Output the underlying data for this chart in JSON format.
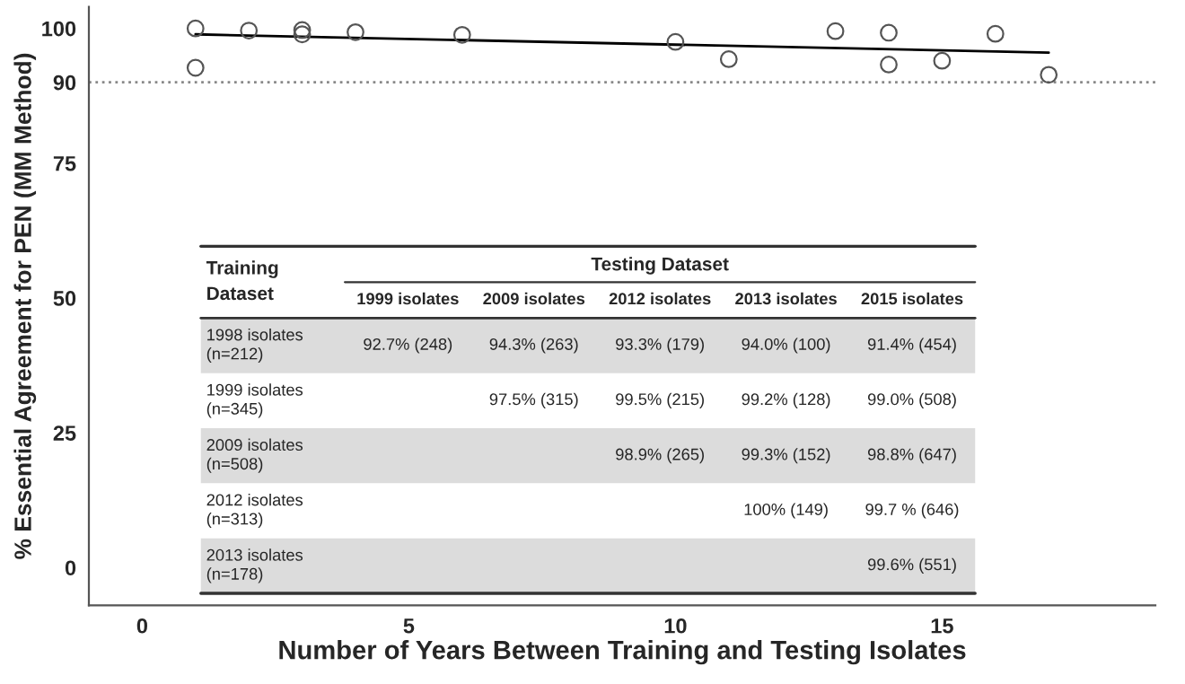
{
  "chart_data": {
    "type": "scatter",
    "xlabel": "Number of Years Between Training and Testing Isolates",
    "ylabel": "% Essential Agreement for PEN (MM Method)",
    "xlim": [
      -1,
      19
    ],
    "xticks": [
      0,
      5,
      10,
      15
    ],
    "ylim": [
      -7,
      104
    ],
    "yticks": [
      0,
      25,
      50,
      75,
      90,
      100
    ],
    "grid": false,
    "legend": false,
    "series": [
      {
        "marker": "circle",
        "color": "#555555",
        "x": [
          1,
          11,
          14,
          15,
          17,
          10,
          13,
          14,
          16,
          3,
          4,
          6,
          1,
          3,
          2
        ],
        "values": [
          92.7,
          94.3,
          93.3,
          94.0,
          91.4,
          97.5,
          99.5,
          99.2,
          99.0,
          98.9,
          99.3,
          98.8,
          100,
          99.7,
          99.6
        ]
      },
      {
        "type": "line",
        "color": "#000000",
        "x": [
          1,
          17
        ],
        "values": [
          98.9,
          95.5
        ]
      }
    ],
    "ref_lines": [
      {
        "axis": "y",
        "value": 90,
        "color": "#888888",
        "line_style": "dotted"
      }
    ],
    "annotations": [
      "Training\nDataset",
      "Testing Dataset",
      "1999 isolates",
      "2009 isolates",
      "2012 isolates",
      "2013 isolates",
      "2015 isolates",
      "1998 isolates\n(n=212)",
      "92.7% (248)",
      "94.3% (263)",
      "93.3% (179)",
      "94.0% (100)",
      "91.4% (454)",
      "1999 isolates\n(n=345)",
      "97.5% (315)",
      "99.5% (215)",
      "99.2% (128)",
      "99.0% (508)",
      "2009 isolates\n(n=508)",
      "98.9% (265)",
      "99.3% (152)",
      "98.8% (647)",
      "2012 isolates\n(n=313)",
      "100% (149)",
      "99.7 % (646)",
      "2013 isolates\n(n=178)",
      "99.6% (551)"
    ]
  }
}
